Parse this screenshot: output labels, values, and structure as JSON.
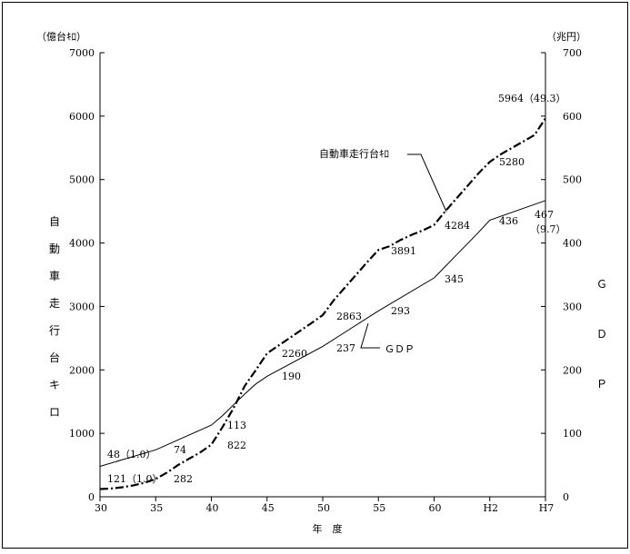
{
  "chart_data": {
    "type": "line",
    "left_unit": "（億台ｷﾛ）",
    "right_unit": "（兆円）",
    "xlabel": "年　度",
    "left_axis_label_chars": [
      "自",
      "動",
      "車",
      "走",
      "行",
      "台",
      "キ",
      "ロ"
    ],
    "right_axis_label_chars": [
      "Ｇ",
      "Ｄ",
      "Ｐ"
    ],
    "x_ticks": [
      "30",
      "35",
      "40",
      "45",
      "50",
      "55",
      "60",
      "H2",
      "H7"
    ],
    "y_left_ticks": [
      "0",
      "1000",
      "2000",
      "3000",
      "4000",
      "5000",
      "6000",
      "7000"
    ],
    "y_right_ticks": [
      "0",
      "100",
      "200",
      "300",
      "400",
      "500",
      "600",
      "700"
    ],
    "ylim_left": [
      0,
      7000
    ],
    "ylim_right": [
      0,
      700
    ],
    "grid": false,
    "series": [
      {
        "name": "自動車走行台ｷﾛ",
        "axis": "left",
        "style": "dash-dot",
        "x": [
          30,
          31,
          32,
          33,
          34,
          35,
          36,
          37,
          38,
          39,
          40,
          41,
          42,
          43,
          44,
          45,
          46,
          47,
          48,
          49,
          50,
          51,
          52,
          53,
          54,
          55,
          56,
          57,
          58,
          59,
          60,
          61,
          62,
          63,
          64,
          65,
          66,
          67,
          68,
          69,
          70
        ],
        "y": [
          121,
          130,
          150,
          180,
          220,
          282,
          380,
          500,
          600,
          700,
          822,
          1100,
          1400,
          1750,
          2000,
          2260,
          2380,
          2500,
          2620,
          2740,
          2863,
          3100,
          3300,
          3500,
          3700,
          3891,
          3950,
          4050,
          4130,
          4200,
          4284,
          4500,
          4700,
          4900,
          5100,
          5280,
          5400,
          5500,
          5600,
          5700,
          5964
        ]
      },
      {
        "name": "ＧＤＰ",
        "axis": "right",
        "style": "solid",
        "x": [
          30,
          35,
          40,
          41,
          42,
          43,
          44,
          45,
          50,
          55,
          60,
          61,
          62,
          63,
          64,
          65,
          70
        ],
        "y": [
          48,
          74,
          113,
          128,
          145,
          162,
          178,
          190,
          237,
          293,
          345,
          363,
          381,
          399,
          417,
          436,
          467
        ]
      }
    ],
    "annotations": [
      {
        "text": "48（1.0）",
        "series": "ＧＤＰ"
      },
      {
        "text": "74",
        "series": "ＧＤＰ"
      },
      {
        "text": "113",
        "series": "ＧＤＰ"
      },
      {
        "text": "190",
        "series": "ＧＤＰ"
      },
      {
        "text": "237",
        "series": "ＧＤＰ"
      },
      {
        "text": "293",
        "series": "ＧＤＰ"
      },
      {
        "text": "345",
        "series": "ＧＤＰ"
      },
      {
        "text": "436",
        "series": "ＧＤＰ"
      },
      {
        "text": "467",
        "series": "ＧＤＰ"
      },
      {
        "text": "（9.7）",
        "series": "ＧＤＰ"
      },
      {
        "text": "121（1.0）",
        "series": "自動車走行台ｷﾛ"
      },
      {
        "text": "282",
        "series": "自動車走行台ｷﾛ"
      },
      {
        "text": "822",
        "series": "自動車走行台ｷﾛ"
      },
      {
        "text": "2260",
        "series": "自動車走行台ｷﾛ"
      },
      {
        "text": "2863",
        "series": "自動車走行台ｷﾛ"
      },
      {
        "text": "3891",
        "series": "自動車走行台ｷﾛ"
      },
      {
        "text": "4284",
        "series": "自動車走行台ｷﾛ"
      },
      {
        "text": "5280",
        "series": "自動車走行台ｷﾛ"
      },
      {
        "text": "5964（49.3）",
        "series": "自動車走行台ｷﾛ"
      }
    ]
  }
}
